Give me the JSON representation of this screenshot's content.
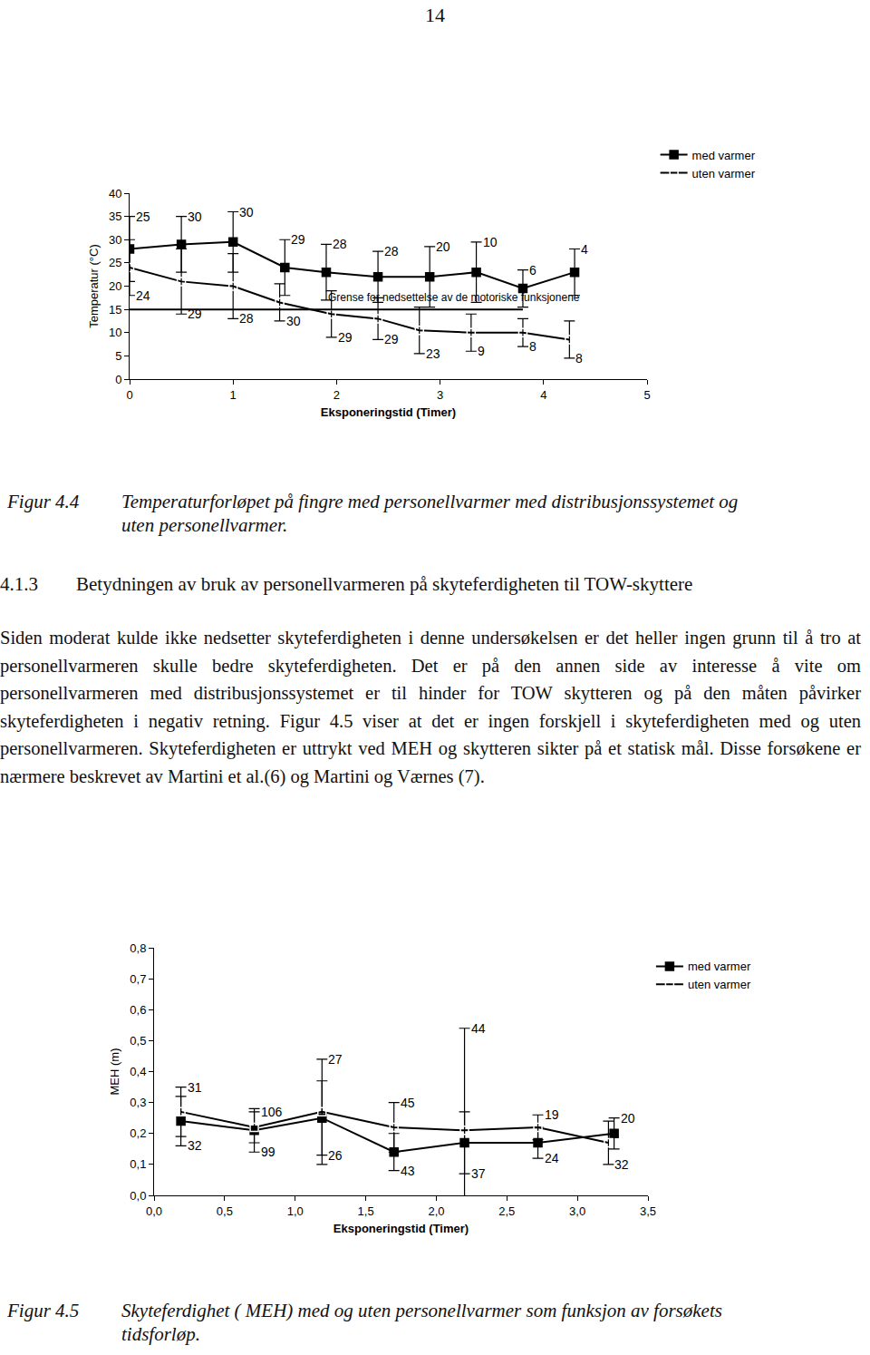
{
  "page_number": "14",
  "chart_data": [
    {
      "type": "line",
      "x_label": "Eksponeringstid (Timer)",
      "y_label": "Temperatur (°C)",
      "xlim": [
        0,
        5
      ],
      "xticks": [
        0,
        1,
        2,
        3,
        4,
        5
      ],
      "ylim": [
        0,
        40
      ],
      "yticks": [
        0,
        5,
        10,
        15,
        20,
        25,
        30,
        35,
        40
      ],
      "grid": false,
      "legend": "top right",
      "series": [
        {
          "name": "med varmer",
          "color": "#000000",
          "marker": "square",
          "x": [
            0,
            0.5,
            1,
            1.5,
            1.9,
            2.4,
            2.9,
            3.35,
            3.8,
            4.3
          ],
          "values": [
            28,
            29,
            29.5,
            24,
            23,
            22,
            22,
            23,
            19.5,
            23
          ],
          "error": [
            7,
            6,
            6.5,
            6,
            6,
            5.5,
            6.5,
            6.5,
            4,
            5
          ],
          "n": [
            25,
            30,
            30,
            29,
            28,
            28,
            20,
            10,
            6,
            4
          ]
        },
        {
          "name": "uten varmer",
          "color": "#000000",
          "marker": "square-open",
          "x": [
            0,
            0.5,
            1,
            1.45,
            1.95,
            2.4,
            2.8,
            3.3,
            3.8,
            4.25
          ],
          "values": [
            24,
            21,
            20,
            16.5,
            14,
            13,
            10.5,
            10,
            10,
            8.5
          ],
          "error": [
            6,
            7,
            7,
            4,
            5,
            4.5,
            5,
            4,
            3,
            4
          ],
          "n": [
            24,
            29,
            28,
            30,
            29,
            29,
            23,
            9,
            8,
            8
          ]
        }
      ],
      "reference_line": {
        "y": 15,
        "x": [
          0,
          3.8
        ],
        "label": "Grense for nedsettelse av de motoriske funksjonene"
      }
    },
    {
      "type": "line",
      "x_label": "Eksponeringstid (Timer)",
      "y_label": "MEH (m)",
      "xlim": [
        0,
        3.5
      ],
      "xticks": [
        {
          "value": 0,
          "label": "0,0"
        },
        {
          "value": 0.5,
          "label": "0,5"
        },
        {
          "value": 1,
          "label": "1,0"
        },
        {
          "value": 1.5,
          "label": "1,5"
        },
        {
          "value": 2,
          "label": "2,0"
        },
        {
          "value": 2.5,
          "label": "2,5"
        },
        {
          "value": 3,
          "label": "3,0"
        },
        {
          "value": 3.5,
          "label": "3,5"
        }
      ],
      "ylim": [
        0,
        0.8
      ],
      "yticks": [
        {
          "value": 0,
          "label": "0,0"
        },
        {
          "value": 0.1,
          "label": "0,1"
        },
        {
          "value": 0.2,
          "label": "0,2"
        },
        {
          "value": 0.3,
          "label": "0,3"
        },
        {
          "value": 0.4,
          "label": "0,4"
        },
        {
          "value": 0.5,
          "label": "0,5"
        },
        {
          "value": 0.6,
          "label": "0,6"
        },
        {
          "value": 0.7,
          "label": "0,7"
        },
        {
          "value": 0.8,
          "label": "0,8"
        }
      ],
      "grid": false,
      "legend": "top right",
      "series": [
        {
          "name": "med varmer",
          "color": "#000000",
          "marker": "square",
          "x": [
            0.19,
            0.71,
            1.19,
            1.7,
            2.2,
            2.72,
            3.26
          ],
          "values": [
            0.24,
            0.21,
            0.25,
            0.14,
            0.17,
            0.17,
            0.2
          ],
          "error": [
            0.08,
            0.07,
            0.12,
            0.06,
            0.1,
            0.05,
            0.05
          ],
          "n": [
            32,
            99,
            26,
            43,
            37,
            24,
            20
          ]
        },
        {
          "name": "uten varmer",
          "color": "#000000",
          "marker": "square-open",
          "x": [
            0.19,
            0.71,
            1.19,
            1.7,
            2.2,
            2.72,
            3.22
          ],
          "values": [
            0.27,
            0.22,
            0.27,
            0.22,
            0.21,
            0.22,
            0.17
          ],
          "error": [
            0.08,
            0.05,
            0.17,
            0.08,
            0.33,
            0.04,
            0.07
          ],
          "n": [
            31,
            106,
            27,
            45,
            44,
            19,
            32
          ]
        }
      ]
    }
  ],
  "captions": [
    {
      "number": "Figur 4.4",
      "text": "Temperaturforløpet på fingre med personellvarmer med distribusjonssystemet og uten personellvarmer."
    },
    {
      "number": "Figur 4.5",
      "text": "Skyteferdighet ( MEH) med og uten personellvarmer som funksjon av forsøkets tidsforløp."
    }
  ],
  "section": {
    "number": "4.1.3",
    "title": "Betydningen av bruk av personellvarmeren på skyteferdigheten til TOW-skyttere",
    "paragraph": "Siden moderat kulde ikke nedsetter skyteferdigheten i denne undersøkelsen er det heller ingen grunn til å tro at personellvarmeren skulle bedre skyteferdigheten. Det er på den annen side av interesse å vite om personellvarmeren med distribusjonssystemet er til hinder for TOW skytteren og på den måten påvirker skyteferdigheten i negativ retning. Figur 4.5 viser at det er ingen forskjell i skyteferdigheten med og uten personellvarmeren. Skyteferdigheten er uttrykt ved MEH og skytteren sikter på et statisk mål. Disse forsøkene er nærmere beskrevet av Martini et al.(6) og Martini og Værnes (7)."
  }
}
